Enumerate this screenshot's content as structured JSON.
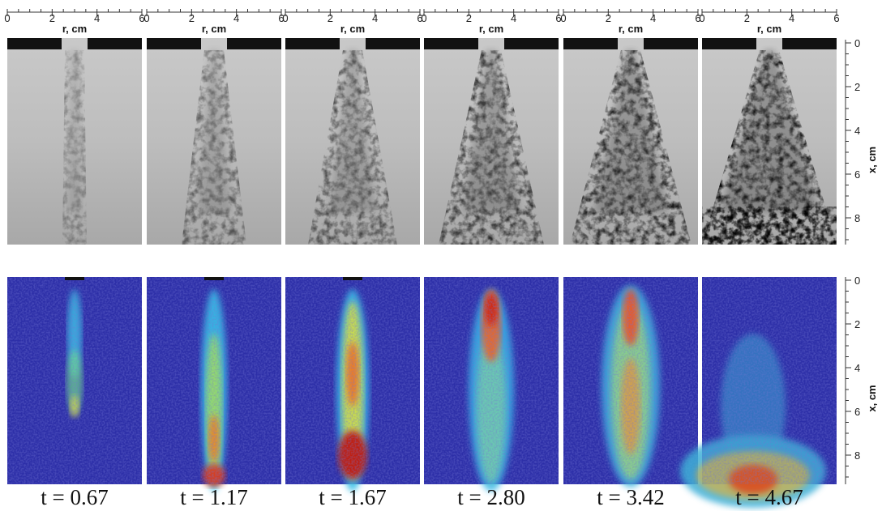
{
  "r_axis": {
    "label": "r, cm",
    "ticks": [
      "0",
      "2",
      "4",
      "6"
    ]
  },
  "x_axis": {
    "label": "x, cm",
    "ticks": [
      "0",
      "2",
      "4",
      "6",
      "8"
    ]
  },
  "panels": [
    {
      "time_label": "t = 0.67"
    },
    {
      "time_label": "t = 1.17"
    },
    {
      "time_label": "t = 1.67"
    },
    {
      "time_label": "t = 2.80"
    },
    {
      "time_label": "t = 3.42"
    },
    {
      "time_label": "t = 4.67"
    }
  ]
}
